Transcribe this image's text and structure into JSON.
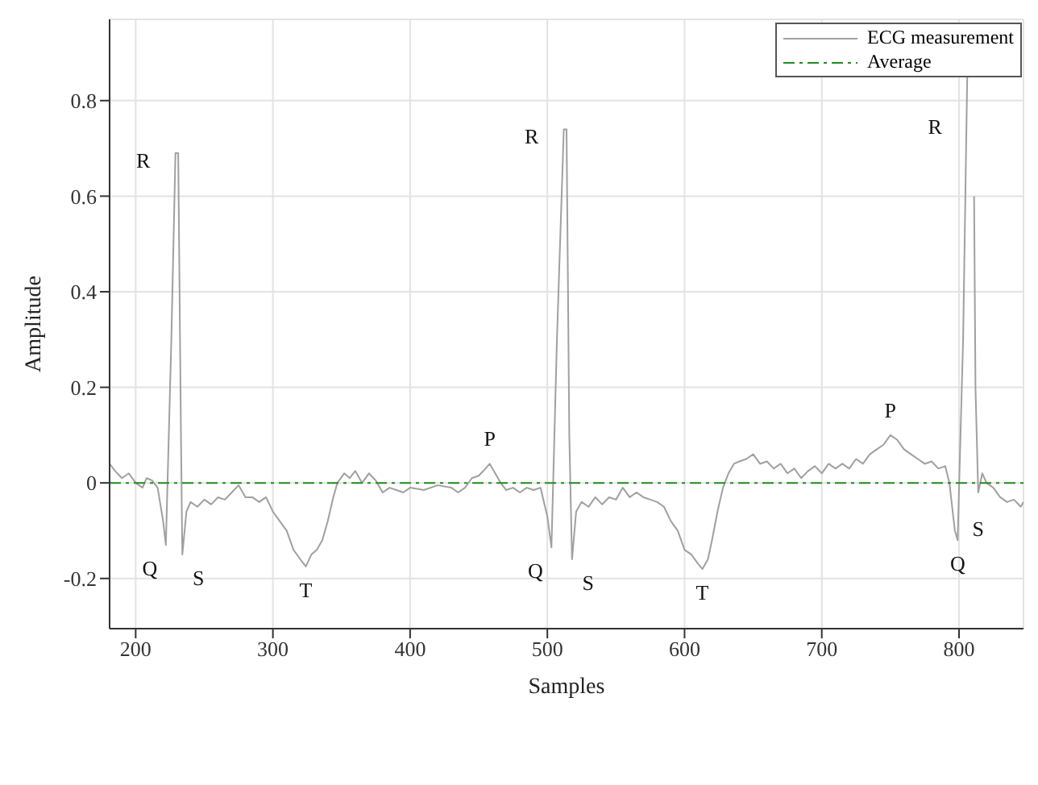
{
  "chart_data": {
    "type": "line",
    "xlabel": "Samples",
    "ylabel": "Amplitude",
    "xlim": [
      181,
      847
    ],
    "ylim": [
      -0.305,
      0.97
    ],
    "xticks": [
      200,
      300,
      400,
      500,
      600,
      700,
      800
    ],
    "yticks": [
      -0.2,
      0,
      0.2,
      0.4,
      0.6,
      0.8
    ],
    "grid": true,
    "legend": "top right",
    "marker": "none",
    "series": [
      {
        "name": "ECG measurement",
        "color": "#a0a0a0",
        "line_style": "solid",
        "x": [
          181,
          185,
          190,
          195,
          200,
          205,
          208,
          212,
          216,
          220,
          222,
          226,
          229,
          231,
          233,
          234,
          237,
          240,
          245,
          250,
          255,
          260,
          265,
          270,
          275,
          280,
          285,
          290,
          295,
          300,
          305,
          310,
          315,
          320,
          324,
          328,
          332,
          336,
          340,
          344,
          347,
          352,
          356,
          360,
          365,
          370,
          375,
          380,
          385,
          390,
          395,
          400,
          410,
          420,
          430,
          435,
          440,
          445,
          450,
          455,
          458,
          462,
          466,
          470,
          475,
          480,
          485,
          490,
          495,
          500,
          503,
          507,
          512,
          514,
          516,
          518,
          521,
          525,
          530,
          535,
          540,
          545,
          550,
          555,
          560,
          565,
          570,
          575,
          580,
          585,
          590,
          595,
          600,
          605,
          610,
          613,
          617,
          620,
          624,
          628,
          632,
          636,
          640,
          645,
          650,
          655,
          660,
          665,
          670,
          675,
          680,
          685,
          690,
          695,
          700,
          705,
          710,
          715,
          720,
          725,
          730,
          735,
          740,
          745,
          750,
          755,
          760,
          765,
          770,
          775,
          780,
          785,
          790,
          793,
          797,
          799,
          803,
          806,
          807,
          810,
          811,
          812,
          814,
          817,
          820,
          825,
          830,
          835,
          840,
          845,
          847
        ],
        "values": [
          0.04,
          0.025,
          0.01,
          0.02,
          0.0,
          -0.01,
          0.01,
          0.005,
          -0.01,
          -0.08,
          -0.13,
          0.3,
          0.69,
          0.69,
          0.1,
          -0.15,
          -0.06,
          -0.04,
          -0.05,
          -0.035,
          -0.045,
          -0.03,
          -0.035,
          -0.02,
          -0.005,
          -0.03,
          -0.03,
          -0.04,
          -0.03,
          -0.06,
          -0.08,
          -0.1,
          -0.14,
          -0.16,
          -0.175,
          -0.15,
          -0.14,
          -0.12,
          -0.08,
          -0.03,
          0.0,
          0.02,
          0.01,
          0.025,
          0.0,
          0.02,
          0.005,
          -0.02,
          -0.01,
          -0.015,
          -0.02,
          -0.01,
          -0.015,
          -0.005,
          -0.01,
          -0.02,
          -0.01,
          0.01,
          0.015,
          0.03,
          0.04,
          0.02,
          0.0,
          -0.015,
          -0.01,
          -0.02,
          -0.01,
          -0.015,
          -0.01,
          -0.07,
          -0.135,
          0.3,
          0.74,
          0.74,
          0.1,
          -0.16,
          -0.06,
          -0.04,
          -0.05,
          -0.03,
          -0.045,
          -0.03,
          -0.035,
          -0.01,
          -0.03,
          -0.02,
          -0.03,
          -0.035,
          -0.04,
          -0.05,
          -0.08,
          -0.1,
          -0.14,
          -0.15,
          -0.17,
          -0.18,
          -0.16,
          -0.12,
          -0.06,
          -0.01,
          0.02,
          0.04,
          0.045,
          0.05,
          0.06,
          0.04,
          0.045,
          0.03,
          0.04,
          0.02,
          0.03,
          0.01,
          0.025,
          0.035,
          0.02,
          0.04,
          0.03,
          0.04,
          0.03,
          0.05,
          0.04,
          0.06,
          0.07,
          0.08,
          0.1,
          0.09,
          0.07,
          0.06,
          0.05,
          0.04,
          0.045,
          0.03,
          0.035,
          0.0,
          -0.1,
          -0.12,
          0.3,
          0.85,
          null,
          null,
          0.6,
          0.2,
          -0.02,
          0.02,
          0.0,
          -0.01,
          -0.03,
          -0.04,
          -0.035,
          -0.05,
          -0.04
        ]
      },
      {
        "name": "Average",
        "color": "#228b22",
        "line_style": "dashdot",
        "x": [
          181,
          847
        ],
        "values": [
          0,
          0
        ]
      }
    ],
    "annotations": [
      {
        "text": "R",
        "x": 229,
        "y": 0.69
      },
      {
        "text": "Q",
        "x": 222,
        "y": -0.13
      },
      {
        "text": "S",
        "x": 234,
        "y": -0.15
      },
      {
        "text": "T",
        "x": 324,
        "y": -0.175
      },
      {
        "text": "P",
        "x": 458,
        "y": 0.04
      },
      {
        "text": "R",
        "x": 512,
        "y": 0.74
      },
      {
        "text": "Q",
        "x": 503,
        "y": -0.135
      },
      {
        "text": "S",
        "x": 518,
        "y": -0.16
      },
      {
        "text": "T",
        "x": 613,
        "y": -0.18
      },
      {
        "text": "P",
        "x": 750,
        "y": 0.1
      },
      {
        "text": "R",
        "x": 806,
        "y": 0.76
      },
      {
        "text": "Q",
        "x": 799,
        "y": -0.12
      },
      {
        "text": "S",
        "x": 814,
        "y": -0.02
      }
    ]
  }
}
